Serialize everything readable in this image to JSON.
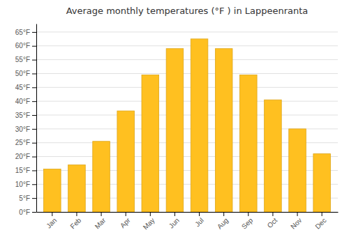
{
  "chart_data": {
    "type": "bar",
    "title": "Average monthly temperatures (°F ) in Lappeenranta",
    "categories": [
      "Jan",
      "Feb",
      "Mar",
      "Apr",
      "May",
      "Jun",
      "Jul",
      "Aug",
      "Sep",
      "Oct",
      "Nov",
      "Dec"
    ],
    "values": [
      15.5,
      17.0,
      25.5,
      36.5,
      49.5,
      59.0,
      62.5,
      59.0,
      49.5,
      40.5,
      30.0,
      21.0
    ],
    "color": "#FFC020",
    "ylim": [
      0,
      68
    ],
    "yticks": [
      {
        "value": 0,
        "label": "0°F"
      },
      {
        "value": 5,
        "label": "5°F"
      },
      {
        "value": 10,
        "label": "10°F"
      },
      {
        "value": 15,
        "label": "15°F"
      },
      {
        "value": 20,
        "label": "20°F"
      },
      {
        "value": 25,
        "label": "25°F"
      },
      {
        "value": 30,
        "label": "30°F"
      },
      {
        "value": 35,
        "label": "35°F"
      },
      {
        "value": 40,
        "label": "40°F"
      },
      {
        "value": 45,
        "label": "45°F"
      },
      {
        "value": 50,
        "label": "50°F"
      },
      {
        "value": 55,
        "label": "55°F"
      },
      {
        "value": 60,
        "label": "60°F"
      },
      {
        "value": 65,
        "label": "65°F"
      }
    ],
    "grid": true
  }
}
